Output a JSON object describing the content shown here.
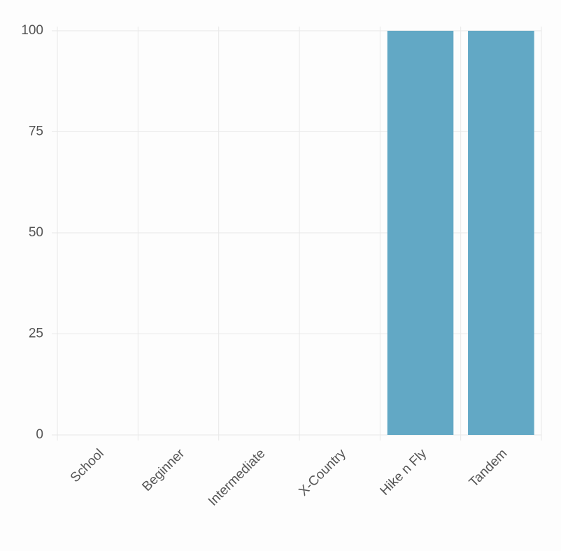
{
  "chart_data": {
    "type": "bar",
    "categories": [
      "School",
      "Beginner",
      "Intermediate",
      "X-Country",
      "Hike n Fly",
      "Tandem"
    ],
    "values": [
      0,
      0,
      0,
      0,
      100,
      100
    ],
    "color": "#62a8c5",
    "ylim": [
      0,
      100
    ],
    "yticks": [
      0,
      25,
      50,
      75,
      100
    ],
    "grid": true
  }
}
